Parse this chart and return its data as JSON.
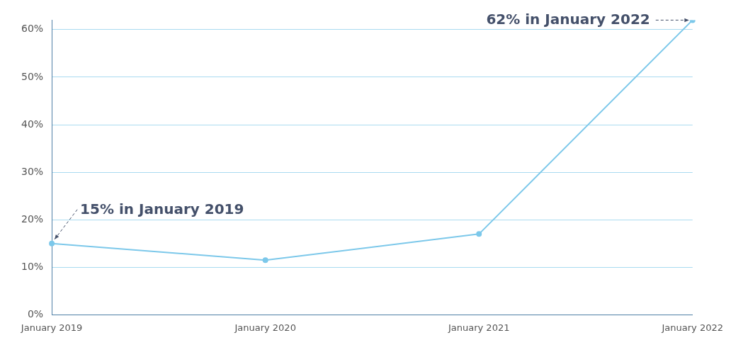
{
  "chart_data": {
    "type": "line",
    "categories": [
      "January 2019",
      "January 2020",
      "January 2021",
      "January 2022"
    ],
    "values": [
      15,
      11.5,
      17,
      62
    ],
    "color": "#7cc8ea",
    "marker": "circle",
    "grid": "y",
    "ylim": [
      0,
      62
    ],
    "yticks": [
      {
        "value": 0,
        "label": "0%"
      },
      {
        "value": 10,
        "label": "10%"
      },
      {
        "value": 20,
        "label": "20%"
      },
      {
        "value": 30,
        "label": "30%"
      },
      {
        "value": 40,
        "label": "40%"
      },
      {
        "value": 50,
        "label": "50%"
      },
      {
        "value": 60,
        "label": "60%"
      }
    ],
    "annotations": [
      {
        "text": "15% in January 2019",
        "x": "January 2019",
        "y": 15
      },
      {
        "text": "62% in January 2022",
        "x": "January 2022",
        "y": 62
      }
    ]
  }
}
